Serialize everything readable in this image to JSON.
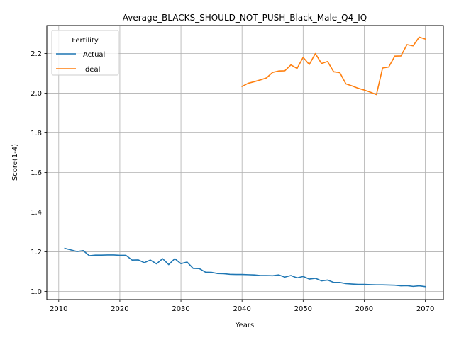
{
  "chart_data": {
    "type": "line",
    "title": "Average_BLACKS_SHOULD_NOT_PUSH_Black_Male_Q4_IQ",
    "xlabel": "Years",
    "ylabel": "Score(1-4)",
    "xlim": [
      2008.05,
      2072.95
    ],
    "ylim": [
      0.9585,
      2.3415
    ],
    "xticks": [
      2010,
      2020,
      2030,
      2040,
      2050,
      2060,
      2070
    ],
    "yticks": [
      1.0,
      1.2,
      1.4,
      1.6,
      1.8,
      2.0,
      2.2
    ],
    "grid": true,
    "legend": {
      "title": "Fertility",
      "placement": "upper left"
    },
    "series": [
      {
        "name": "Actual",
        "color": "#1f77b4",
        "x": [
          2011,
          2012,
          2013,
          2014,
          2015,
          2016,
          2017,
          2018,
          2019,
          2020,
          2021,
          2022,
          2023,
          2024,
          2025,
          2026,
          2027,
          2028,
          2029,
          2030,
          2031,
          2032,
          2033,
          2034,
          2035,
          2036,
          2037,
          2038,
          2039,
          2040,
          2041,
          2042,
          2043,
          2044,
          2045,
          2046,
          2047,
          2048,
          2049,
          2050,
          2051,
          2052,
          2053,
          2054,
          2055,
          2056,
          2057,
          2058,
          2059,
          2060,
          2061,
          2062,
          2063,
          2064,
          2065,
          2066,
          2067,
          2068,
          2069,
          2070
        ],
        "y": [
          1.217,
          1.209,
          1.201,
          1.206,
          1.18,
          1.183,
          1.183,
          1.184,
          1.184,
          1.182,
          1.182,
          1.158,
          1.159,
          1.145,
          1.158,
          1.139,
          1.165,
          1.135,
          1.165,
          1.14,
          1.148,
          1.116,
          1.115,
          1.097,
          1.096,
          1.09,
          1.089,
          1.086,
          1.085,
          1.085,
          1.084,
          1.083,
          1.08,
          1.08,
          1.079,
          1.083,
          1.072,
          1.08,
          1.068,
          1.075,
          1.062,
          1.066,
          1.053,
          1.057,
          1.045,
          1.045,
          1.039,
          1.037,
          1.035,
          1.035,
          1.034,
          1.033,
          1.033,
          1.032,
          1.031,
          1.028,
          1.029,
          1.025,
          1.028,
          1.024
        ]
      },
      {
        "name": "Ideal",
        "color": "#ff7f0e",
        "x": [
          2040,
          2041,
          2042,
          2043,
          2044,
          2045,
          2046,
          2047,
          2048,
          2049,
          2050,
          2051,
          2052,
          2053,
          2054,
          2055,
          2056,
          2057,
          2058,
          2059,
          2060,
          2061,
          2062,
          2063,
          2064,
          2065,
          2066,
          2067,
          2068,
          2069,
          2070
        ],
        "y": [
          2.034,
          2.05,
          2.058,
          2.067,
          2.077,
          2.105,
          2.112,
          2.113,
          2.143,
          2.125,
          2.181,
          2.145,
          2.2,
          2.15,
          2.16,
          2.108,
          2.104,
          2.047,
          2.037,
          2.025,
          2.016,
          2.005,
          1.993,
          2.127,
          2.132,
          2.187,
          2.188,
          2.245,
          2.239,
          2.283,
          2.273
        ]
      }
    ]
  }
}
